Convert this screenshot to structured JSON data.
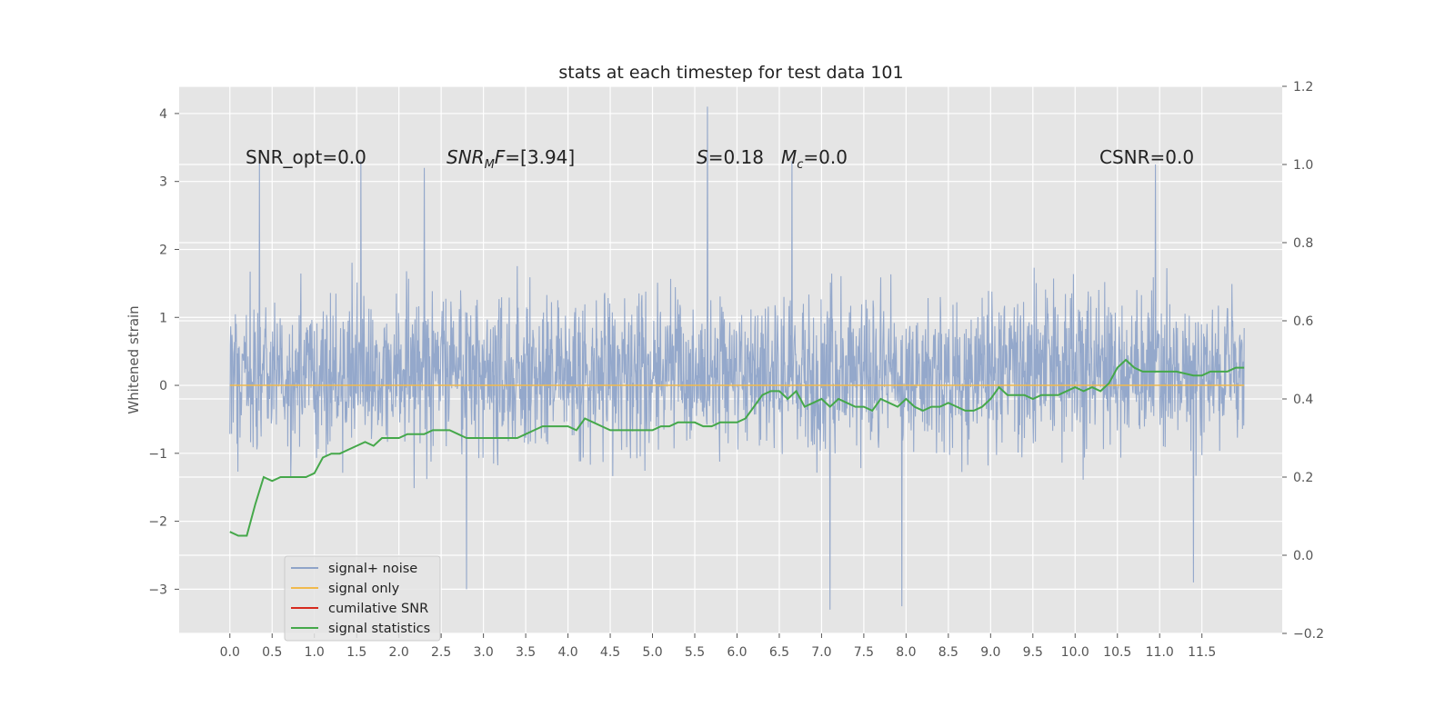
{
  "chart_data": {
    "type": "line",
    "title": "stats at each timestep for test data 101",
    "ylabel": "Whitened strain",
    "xlabel": "",
    "x_ticks": [
      "0.0",
      "0.5",
      "1.0",
      "1.5",
      "2.0",
      "2.5",
      "3.0",
      "3.5",
      "4.0",
      "4.5",
      "5.0",
      "5.5",
      "6.0",
      "6.5",
      "7.0",
      "7.5",
      "8.0",
      "8.5",
      "9.0",
      "9.5",
      "10.0",
      "10.5",
      "11.0",
      "11.5"
    ],
    "y_left_ticks": [
      "−3",
      "−2",
      "−1",
      "0",
      "1",
      "2",
      "3",
      "4"
    ],
    "y_right_ticks": [
      "−0.2",
      "0.0",
      "0.2",
      "0.4",
      "0.6",
      "0.8",
      "1.0",
      "1.2"
    ],
    "xlim": [
      -0.6,
      12.45
    ],
    "ylim_left": [
      -3.65,
      4.4
    ],
    "ylim_right": [
      -0.2,
      1.2
    ],
    "grid": true,
    "legend_placement": "lower-left",
    "annotations": {
      "snr_opt": "SNR_opt=0.0",
      "snr_mf_label": "SNR",
      "snr_mf_sub": "M",
      "snr_mf_f": "F",
      "snr_mf_value": "=[3.94]",
      "s_label": "S",
      "s_value": "=0.18",
      "mc_label": "M",
      "mc_sub": "c",
      "mc_value": "=0.0",
      "csnr": "CSNR=0.0"
    },
    "series": [
      {
        "name": "signal+ noise",
        "axis": "left",
        "color": "#8fa4c9",
        "note_peaks": [
          {
            "x": 0.35,
            "y": 3.3
          },
          {
            "x": 1.55,
            "y": 3.3
          },
          {
            "x": 2.3,
            "y": 3.2
          },
          {
            "x": 5.65,
            "y": 4.1
          },
          {
            "x": 6.65,
            "y": 3.3
          },
          {
            "x": 10.95,
            "y": 3.25
          }
        ],
        "note_troughs": [
          {
            "x": 2.8,
            "y": -3.0
          },
          {
            "x": 7.1,
            "y": -3.3
          },
          {
            "x": 7.95,
            "y": -3.25
          },
          {
            "x": 11.4,
            "y": -2.9
          }
        ],
        "x_range": [
          0.0,
          12.0
        ],
        "typical_upper": 2.0,
        "typical_lower": -1.6
      },
      {
        "name": "signal only",
        "axis": "left",
        "color": "#f0b94d",
        "x": [
          0.0,
          12.0
        ],
        "y": [
          0.0,
          0.0
        ]
      },
      {
        "name": "cumilative SNR",
        "axis": "right",
        "color": "#d62a1f",
        "x": [],
        "y": []
      },
      {
        "name": "signal statistics",
        "axis": "right",
        "color": "#45a84a",
        "x": [
          0.0,
          0.1,
          0.2,
          0.3,
          0.4,
          0.5,
          0.6,
          0.7,
          0.8,
          0.9,
          1.0,
          1.1,
          1.2,
          1.3,
          1.4,
          1.5,
          1.6,
          1.7,
          1.8,
          1.9,
          2.0,
          2.1,
          2.2,
          2.3,
          2.4,
          2.5,
          2.6,
          2.7,
          2.8,
          2.9,
          3.0,
          3.2,
          3.4,
          3.5,
          3.6,
          3.7,
          3.8,
          3.9,
          4.0,
          4.1,
          4.2,
          4.3,
          4.4,
          4.5,
          4.6,
          4.8,
          5.0,
          5.1,
          5.2,
          5.3,
          5.5,
          5.6,
          5.7,
          5.8,
          5.9,
          6.0,
          6.1,
          6.2,
          6.3,
          6.4,
          6.5,
          6.6,
          6.7,
          6.8,
          6.9,
          7.0,
          7.1,
          7.2,
          7.3,
          7.4,
          7.5,
          7.6,
          7.7,
          7.8,
          7.9,
          8.0,
          8.1,
          8.2,
          8.3,
          8.4,
          8.5,
          8.6,
          8.7,
          8.8,
          8.9,
          9.0,
          9.1,
          9.2,
          9.3,
          9.4,
          9.5,
          9.6,
          9.8,
          10.0,
          10.1,
          10.2,
          10.3,
          10.4,
          10.5,
          10.6,
          10.7,
          10.8,
          11.0,
          11.2,
          11.4,
          11.5,
          11.6,
          11.7,
          11.8,
          11.9,
          12.0
        ],
        "y": [
          0.06,
          0.05,
          0.05,
          0.13,
          0.2,
          0.19,
          0.2,
          0.2,
          0.2,
          0.2,
          0.21,
          0.25,
          0.26,
          0.26,
          0.27,
          0.28,
          0.29,
          0.28,
          0.3,
          0.3,
          0.3,
          0.31,
          0.31,
          0.31,
          0.32,
          0.32,
          0.32,
          0.31,
          0.3,
          0.3,
          0.3,
          0.3,
          0.3,
          0.31,
          0.32,
          0.33,
          0.33,
          0.33,
          0.33,
          0.32,
          0.35,
          0.34,
          0.33,
          0.32,
          0.32,
          0.32,
          0.32,
          0.33,
          0.33,
          0.34,
          0.34,
          0.33,
          0.33,
          0.34,
          0.34,
          0.34,
          0.35,
          0.38,
          0.41,
          0.42,
          0.42,
          0.4,
          0.42,
          0.38,
          0.39,
          0.4,
          0.38,
          0.4,
          0.39,
          0.38,
          0.38,
          0.37,
          0.4,
          0.39,
          0.38,
          0.4,
          0.38,
          0.37,
          0.38,
          0.38,
          0.39,
          0.38,
          0.37,
          0.37,
          0.38,
          0.4,
          0.43,
          0.41,
          0.41,
          0.41,
          0.4,
          0.41,
          0.41,
          0.43,
          0.42,
          0.43,
          0.42,
          0.44,
          0.48,
          0.5,
          0.48,
          0.47,
          0.47,
          0.47,
          0.46,
          0.46,
          0.47,
          0.47,
          0.47,
          0.48,
          0.48
        ]
      }
    ]
  }
}
